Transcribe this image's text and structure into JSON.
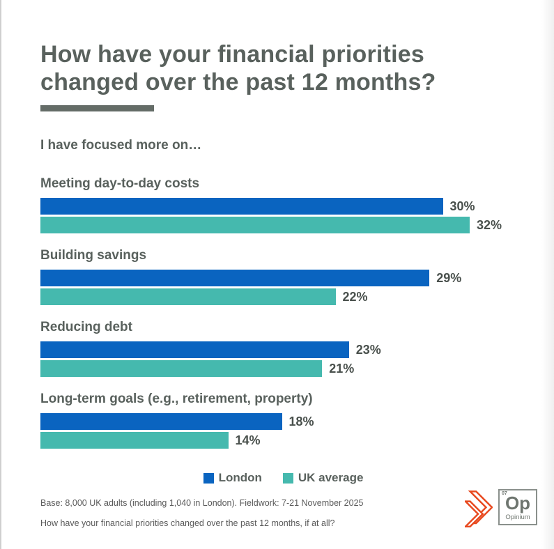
{
  "title_line1": "How have your financial priorities",
  "title_line2": "changed over the past 12 months?",
  "subtitle": "I have focused more on…",
  "legend": [
    {
      "label": "London",
      "color": "#0A64C0"
    },
    {
      "label": "UK average",
      "color": "#45B9AE"
    }
  ],
  "chart_data": {
    "type": "bar",
    "orientation": "horizontal",
    "categories": [
      "Meeting day-to-day costs",
      "Building savings",
      "Reducing debt",
      "Long-term goals (e.g., retirement, property)"
    ],
    "series": [
      {
        "name": "London",
        "color": "#0A64C0",
        "values": [
          30,
          29,
          23,
          18
        ]
      },
      {
        "name": "UK average",
        "color": "#45B9AE",
        "values": [
          32,
          22,
          21,
          14
        ]
      }
    ],
    "value_suffix": "%",
    "xlim": [
      0,
      33
    ],
    "grid": false,
    "legend_position": "bottom-center"
  },
  "footer": {
    "base_note": "Base: 8,000 UK adults (including 1,040 in London). Fieldwork: 7-21 November 2025",
    "question_note": "How have your financial priorities changed over the past 12 months, if at all?"
  },
  "logo": {
    "element_number": "07",
    "symbol": "Op",
    "name": "Opinium",
    "accent_color": "#E8491F"
  }
}
